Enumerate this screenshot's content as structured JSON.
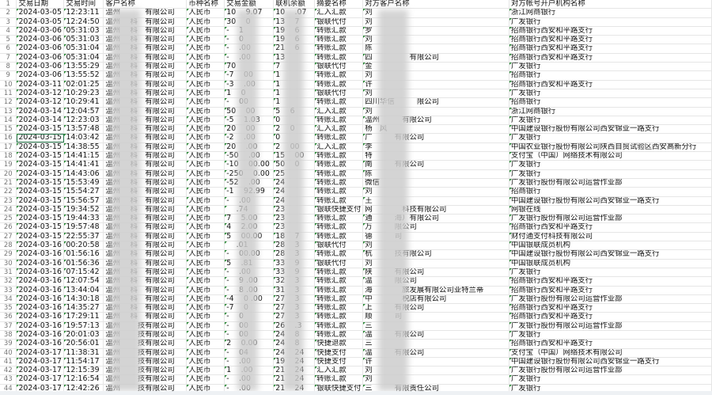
{
  "sheet": {
    "headers": [
      "交易日期",
      "交易时间",
      "客户名称",
      "币种名称",
      "交易金额",
      "联机余额",
      "摘要名称",
      "对方客户名称",
      "对方帐号开户机构名称"
    ],
    "selected_row": 16,
    "rows": [
      [
        "2024-03-05",
        "12:23:11",
        "温州　 　　有限公司",
        "人民币",
        "10　 9.07",
        "10　 .07",
        "汇入汇款",
        "刘",
        "浙江网商银行"
      ],
      [
        "2024-03-05",
        "12:24:50",
        "温州　 科　有限公司",
        "人民币",
        "30　 0",
        "13　 7",
        "银联代付",
        "刘",
        "广发银行"
      ],
      [
        "2024-03-06",
        "05:31:03",
        "温州　 科　有限公司",
        "人民币",
        "-　 1",
        "19　 6",
        "转账汇款",
        "罗",
        "招商银行西安和平路支行"
      ],
      [
        "2024-03-06",
        "05:31:03",
        "温州　 科　有限公司",
        "人民币",
        "-　 0",
        "19　 6",
        "转账汇款",
        "刘",
        "招商银行西安和平路支行"
      ],
      [
        "2024-03-06",
        "05:31:04",
        "温州　 科　有限公司",
        "人民币",
        "-　 .00",
        "21　 6",
        "转账汇款",
        "陈",
        "招商银行西安和平路支行"
      ],
      [
        "2024-03-06",
        "05:31:04",
        "温州　 科　有限公司",
        "人民币",
        "-　 .00",
        "13",
        "转账汇款",
        "四　　　　　有限公司",
        "招商银行西安和平路支行"
      ],
      [
        "2024-03-06",
        "13:55:29",
        "温州　 科　有限公司",
        "人民币",
        "70",
        "7",
        "银联代付",
        "金",
        "广发银行"
      ],
      [
        "2024-03-06",
        "13:55:52",
        "温州　 科　有限公司",
        "人民币",
        "-7　 00",
        "1",
        "转账汇款",
        "刘",
        "招商银行"
      ],
      [
        "2024-03-11",
        "02:01:25",
        "温州　 科　有限公司",
        "人民币",
        "-3　 .00",
        "1",
        "转账汇款",
        "许",
        "招商银行西安和平路支行"
      ],
      [
        "2024-03-12",
        "10:29:23",
        "温州　 科　有限公司",
        "人民币",
        "1　 0",
        "1",
        "银联代付",
        "刘",
        "广发银行"
      ],
      [
        "2024-03-12",
        "10:29:41",
        "温州　 科　有限公司",
        "人民币",
        "-　 00",
        "1",
        "转账汇款",
        "四川华信　　　限公司",
        "招商银行"
      ],
      [
        "2024-03-14",
        "12:04:57",
        "温州　 科　有限公司",
        "人民币",
        "50　 00",
        "5　 6",
        "汇入汇款",
        "刘",
        "浙江网商银行"
      ],
      [
        "2024-03-14",
        "12:23:03",
        "温州　 科　有限公司",
        "人民币",
        "-5　 1.03",
        "0",
        "转账汇款",
        "温州　　　有限公司",
        "广发银行"
      ],
      [
        "2024-03-15",
        "13:57:48",
        "温州　 科　有限公司",
        "人民币",
        "20　 00",
        "2　 0",
        "汇入汇款",
        "杨　风",
        "中国建设银行股份有限公司西安锦业一路支行"
      ],
      [
        "2024-03-15",
        "14:03:42",
        "温州　 科　有限公司",
        "人民币",
        "-2　 .00",
        "0",
        "转账汇款",
        "广　　　有限公司",
        "广发银行"
      ],
      [
        "2024-03-15",
        "14:38:55",
        "温州　 科　有限公司",
        "人民币",
        "20　 .00",
        "2　 00",
        "汇入汇款",
        "李",
        "中国农业银行股份有限公司陕西自贸试验区西安高新分行"
      ],
      [
        "2024-03-15",
        "14:41:15",
        "温州　 科　有限公司",
        "人民币",
        "-50　 .00",
        "15　 00",
        "转账汇款",
        "特",
        "支付宝（中国）网络技术有限公司"
      ],
      [
        "2024-03-15",
        "14:41:41",
        "温州　 科　有限公司",
        "人民币",
        "-10　 00.00",
        "50　 0",
        "转账汇款",
        "南　　　有限公司",
        "广发银行"
      ],
      [
        "2024-03-15",
        "14:43:06",
        "温州　 科　有限公司",
        "人民币",
        "-250　 0.00",
        "25",
        "转账汇款",
        "陈",
        "广发银行"
      ],
      [
        "2024-03-15",
        "15:53:49",
        "温州　 科　有限公司",
        "人民币",
        "-52　 .00",
        "24",
        "转账汇款",
        "微信",
        "广发银行股份有限公司运营作业部"
      ],
      [
        "2024-03-15",
        "15:54:27",
        "温州　 科　有限公司",
        "人民币",
        "-1　 92.99",
        "24",
        "转账汇款",
        "刘",
        "招商银行"
      ],
      [
        "2024-03-15",
        "15:56:57",
        "温州　 科　有限公司",
        "人民币",
        "-　 .00",
        "24",
        "转账汇款",
        "王",
        "中国建设银行股份有限公司西安锦业一路支行"
      ],
      [
        "2024-03-15",
        "19:34:52",
        "温州　 科　有限公司",
        "人民币",
        "　 .74",
        "23",
        "银联快捷支付",
        "网　　　　科技有限公司",
        "网银在线"
      ],
      [
        "2024-03-15",
        "19:44:33",
        "温州　 科　有限公司",
        "人民币",
        "7　 5.00",
        "23",
        "转账汇款",
        "通　　　海）有限公司",
        "广发银行股份有限公司运营作业部"
      ],
      [
        "2024-03-15",
        "19:57:48",
        "温州　 科　有限公司",
        "人民币",
        "4　 2.00",
        "23",
        "转账汇款",
        "万　　　限公司",
        "招商银行西安和平路支行"
      ],
      [
        "2024-03-15",
        "22:55:37",
        "温州　 科　有限公司",
        "人民币",
        "5　 00.00",
        "18　 7",
        "转账汇款",
        "德　　　司",
        "财付通支付科技有限公司"
      ],
      [
        "2024-03-16",
        "00:20:58",
        "温州　 科　有限公司",
        "人民币",
        "　 .01",
        "28　 3",
        "银联代付",
        "刘",
        "中国银联成员机构"
      ],
      [
        "2024-03-16",
        "01:56:16",
        "温州　 科　有限公司",
        "人民币",
        "-　 00.00",
        "28　 3",
        "转账汇款",
        "杭　　　技有限公司",
        "中国建设银行股份有限公司西安锦业一路支行"
      ],
      [
        "2024-03-16",
        "01:56:36",
        "温州　 科　有限公司",
        "人民币",
        "5　 .81",
        "33　 9",
        "银联代付",
        "刘",
        "中国银联成员机构"
      ],
      [
        "2024-03-16",
        "07:15:42",
        "温州　 科　有限公司",
        "人民币",
        "-　 .00",
        "33　 9",
        "转账汇款",
        "陕　　　有限公司",
        "广发银行"
      ],
      [
        "2024-03-16",
        "12:07:54",
        "温州　 科　有限公司",
        "人民币",
        "-　 9 .00",
        "32　 3",
        "转账汇款",
        "温　　　限公司",
        "招商银行西安和平路支行"
      ],
      [
        "2024-03-16",
        "13:44:04",
        "温州　 科　有限公司",
        "人民币",
        "-　 8 .00",
        "31　 3",
        "转账汇款",
        "海　　　　旅发展有限公司亚特兰蒂",
        "招商银行西安和平路支行"
      ],
      [
        "2024-03-16",
        "14:30:18",
        "温州　 科　有限公司",
        "人民币",
        "-4　 0 .00",
        "27　 3",
        "转账汇款",
        "中　　　　税店有限公司",
        "广发银行股份有限公司运营作业部"
      ],
      [
        "2024-03-16",
        "14:35:27",
        "温州　 科　有限公司",
        "人民币",
        "-7　 0",
        "27　 3",
        "转账汇款",
        "上　　　有限公司",
        "招商银行西安和平路支行"
      ],
      [
        "2024-03-16",
        "17:29:11",
        "温州　 科　有限公司",
        "人民币",
        "-　 0",
        "27　 3",
        "转账汇款",
        "顺　　　司",
        "招商银行西安和平路支行"
      ],
      [
        "2024-03-16",
        "19:57:13",
        "温州　 　技有限公司",
        "人民币",
        "-　 00",
        "26　 .3",
        "转账汇款",
        "三",
        "广发银行股份有限公司运营作业部"
      ],
      [
        "2024-03-16",
        "20:01:03",
        "温州　 　技有限公司",
        "人民币",
        "-　 00",
        "24　 8",
        "转账汇款",
        "温　　　有限公司",
        "广发银行"
      ],
      [
        "2024-03-16",
        "20:56:01",
        "温州　 　技有限公司",
        "人民币",
        "2　 0.00",
        "24　 8",
        "快捷退款",
        "三",
        "招商银行西安和平路支行"
      ],
      [
        "2024-03-17",
        "11:38:31",
        "温州　 　技有限公司",
        "人民币",
        "-　 04",
        "24　 24",
        "快捷支付",
        "温　　　有限公司",
        "支付宝（中国）网络技术有限公司"
      ],
      [
        "2024-03-17",
        "11:54:17",
        "温州　 　技有限公司",
        "人民币",
        "-　 .00",
        "19　 24",
        "快捷支付",
        "许",
        "中国建设银行股份有限公司西安锦业一路支行"
      ],
      [
        "2024-03-17",
        "12:15:39",
        "温州　 　技有限公司",
        "人民币",
        "1　 .00",
        "21　 24",
        "汇入汇款",
        "刘",
        "广发银行股份有限公司运营作业部"
      ],
      [
        "2024-03-17",
        "12:16:54",
        "温州　 　技有限公司",
        "人民币",
        "-　 .00",
        "21　 24",
        "转账汇款",
        "刘",
        "广发银行"
      ],
      [
        "2024-03-17",
        "12:42:26",
        "温州　 　技有限公司",
        "人民币",
        "-　 .00",
        "21　 24",
        "银联快捷支付",
        "三　　　有限责任公司",
        "广发银行"
      ]
    ]
  }
}
